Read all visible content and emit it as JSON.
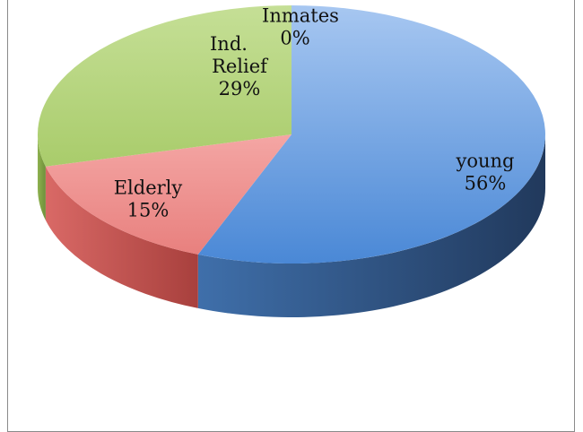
{
  "chart_data": {
    "type": "pie",
    "style": "3d",
    "title": "",
    "slices": [
      {
        "label": "young",
        "value": 56,
        "display": "56%",
        "color": "#4F81BD"
      },
      {
        "label": "Elderly",
        "value": 15,
        "display": "15%",
        "color": "#C0504D"
      },
      {
        "label": "Ind. Relief",
        "value": 29,
        "display": "29%",
        "color": "#9BBB59"
      },
      {
        "label": "Inmates",
        "value": 0,
        "display": "0%",
        "color": "#8064A2"
      }
    ],
    "data_labels": "category and percentage",
    "legend": "none"
  }
}
